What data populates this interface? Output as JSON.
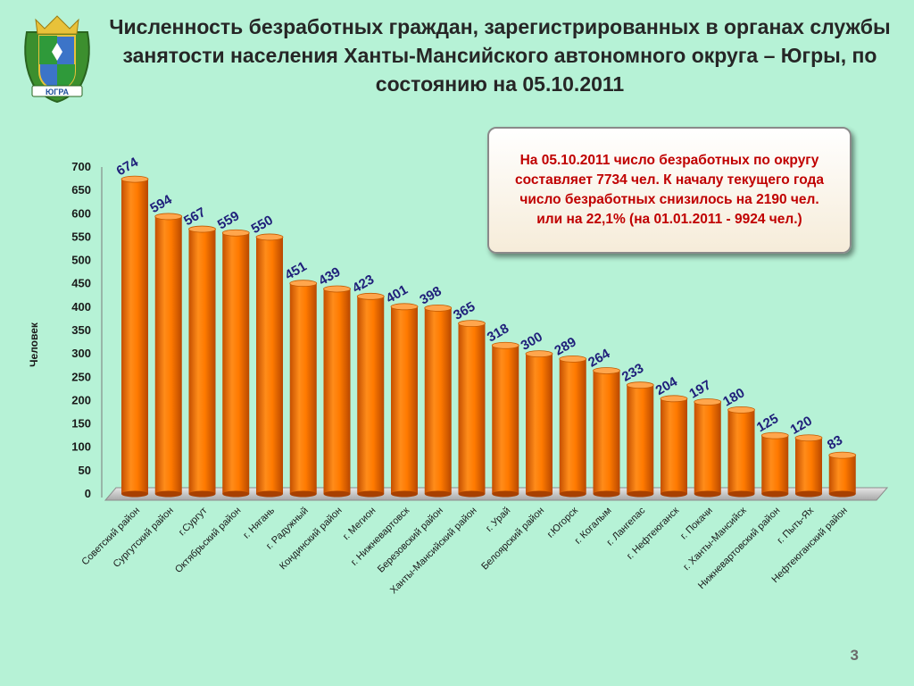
{
  "title": "Численность безработных граждан, зарегистрированных в органах службы занятости населения Ханты-Мансийского автономного округа – Югры, по состоянию на 05.10.2011",
  "info_box": "На 05.10.2011 число безработных по округу составляет  7734 чел. К началу текущего года число безработных снизилось на 2190 чел. или на 22,1% (на 01.01.2011 - 9924 чел.)",
  "emblem_label": "ЮГРА",
  "page_number": "3",
  "colors": {
    "background": "#b6f2d6",
    "bar": "#ff7a00",
    "bar_dark": "#c44f00",
    "value_label": "#1f1f7a",
    "info_text": "#c00000"
  },
  "chart_data": {
    "type": "bar",
    "ylabel": "Человек",
    "ylim": [
      0,
      700
    ],
    "yticks": [
      0,
      50,
      100,
      150,
      200,
      250,
      300,
      350,
      400,
      450,
      500,
      550,
      600,
      650,
      700
    ],
    "grid": false,
    "legend": "none",
    "categories": [
      "Советский район",
      "Сургутский район",
      "г.Сургут",
      "Октябрьский район",
      "г. Нягань",
      "г. Радужный",
      "Кондинский район",
      "г. Мегион",
      "г. Нижневартовск",
      "Березовский район",
      "Ханты-Мансийский район",
      "г. Урай",
      "Белоярский район",
      "г.Югорск",
      "г. Когалым",
      "г. Лангепас",
      "г. Нефтеюганск",
      "г. Покачи",
      "г. Ханты-Мансийск",
      "Нижневартовский район",
      "г. Пыть-Ях",
      "Нефтеюганский район"
    ],
    "values": [
      674,
      594,
      567,
      559,
      550,
      451,
      439,
      423,
      401,
      398,
      365,
      318,
      300,
      289,
      264,
      233,
      204,
      197,
      180,
      125,
      120,
      83
    ]
  }
}
